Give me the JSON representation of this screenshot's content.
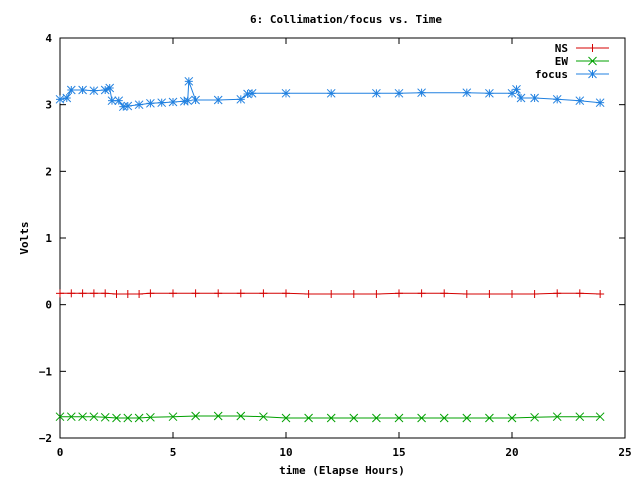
{
  "chart_data": {
    "type": "line",
    "title": "6: Collimation/focus vs. Time",
    "xlabel": "time (Elapse Hours)",
    "ylabel": "Volts",
    "xlim": [
      0,
      25
    ],
    "ylim": [
      -2,
      4
    ],
    "x_ticks": [
      0,
      5,
      10,
      15,
      20,
      25
    ],
    "x_tick_labels": [
      "0",
      "5",
      "10",
      "15",
      "20",
      "25"
    ],
    "y_ticks": [
      -2,
      -1,
      0,
      1,
      2,
      3,
      4
    ],
    "y_tick_labels": [
      "−2",
      "−1",
      "0",
      "1",
      "2",
      "3",
      "4"
    ],
    "grid": false,
    "legend_position": "top-right",
    "series": [
      {
        "name": "NS",
        "color": "#d40000",
        "marker": "plus",
        "x": [
          0,
          0.5,
          1,
          1.5,
          2,
          2.5,
          3,
          3.5,
          4,
          5,
          6,
          7,
          8,
          9,
          10,
          11,
          12,
          13,
          14,
          15,
          16,
          17,
          18,
          19,
          20,
          21,
          22,
          23,
          23.9
        ],
        "y": [
          0.17,
          0.17,
          0.17,
          0.17,
          0.17,
          0.16,
          0.16,
          0.16,
          0.17,
          0.17,
          0.17,
          0.17,
          0.17,
          0.17,
          0.17,
          0.16,
          0.16,
          0.16,
          0.16,
          0.17,
          0.17,
          0.17,
          0.16,
          0.16,
          0.16,
          0.16,
          0.17,
          0.17,
          0.16
        ]
      },
      {
        "name": "EW",
        "color": "#00a000",
        "marker": "cross",
        "x": [
          0,
          0.5,
          1,
          1.5,
          2,
          2.5,
          3,
          3.5,
          4,
          5,
          6,
          7,
          8,
          9,
          10,
          11,
          12,
          13,
          14,
          15,
          16,
          17,
          18,
          19,
          20,
          21,
          22,
          23,
          23.9
        ],
        "y": [
          -1.68,
          -1.68,
          -1.68,
          -1.68,
          -1.69,
          -1.7,
          -1.7,
          -1.7,
          -1.69,
          -1.68,
          -1.67,
          -1.67,
          -1.67,
          -1.68,
          -1.7,
          -1.7,
          -1.7,
          -1.7,
          -1.7,
          -1.7,
          -1.7,
          -1.7,
          -1.7,
          -1.7,
          -1.7,
          -1.69,
          -1.68,
          -1.68,
          -1.68
        ]
      },
      {
        "name": "focus",
        "color": "#2080e0",
        "marker": "star",
        "x": [
          0,
          0.3,
          0.5,
          1,
          1.5,
          2,
          2.2,
          2.3,
          2.6,
          2.8,
          3,
          3.5,
          4,
          4.5,
          5,
          5.5,
          5.65,
          5.7,
          6,
          7,
          8,
          8.3,
          8.5,
          10,
          12,
          14,
          15,
          16,
          18,
          19,
          20,
          20.2,
          20.4,
          21,
          22,
          23,
          23.9
        ],
        "y": [
          3.08,
          3.1,
          3.22,
          3.22,
          3.21,
          3.22,
          3.25,
          3.06,
          3.06,
          2.97,
          2.98,
          3.0,
          3.02,
          3.03,
          3.04,
          3.05,
          3.06,
          3.35,
          3.07,
          3.07,
          3.08,
          3.16,
          3.17,
          3.17,
          3.17,
          3.17,
          3.17,
          3.18,
          3.18,
          3.17,
          3.17,
          3.23,
          3.1,
          3.1,
          3.08,
          3.06,
          3.03
        ]
      }
    ]
  }
}
